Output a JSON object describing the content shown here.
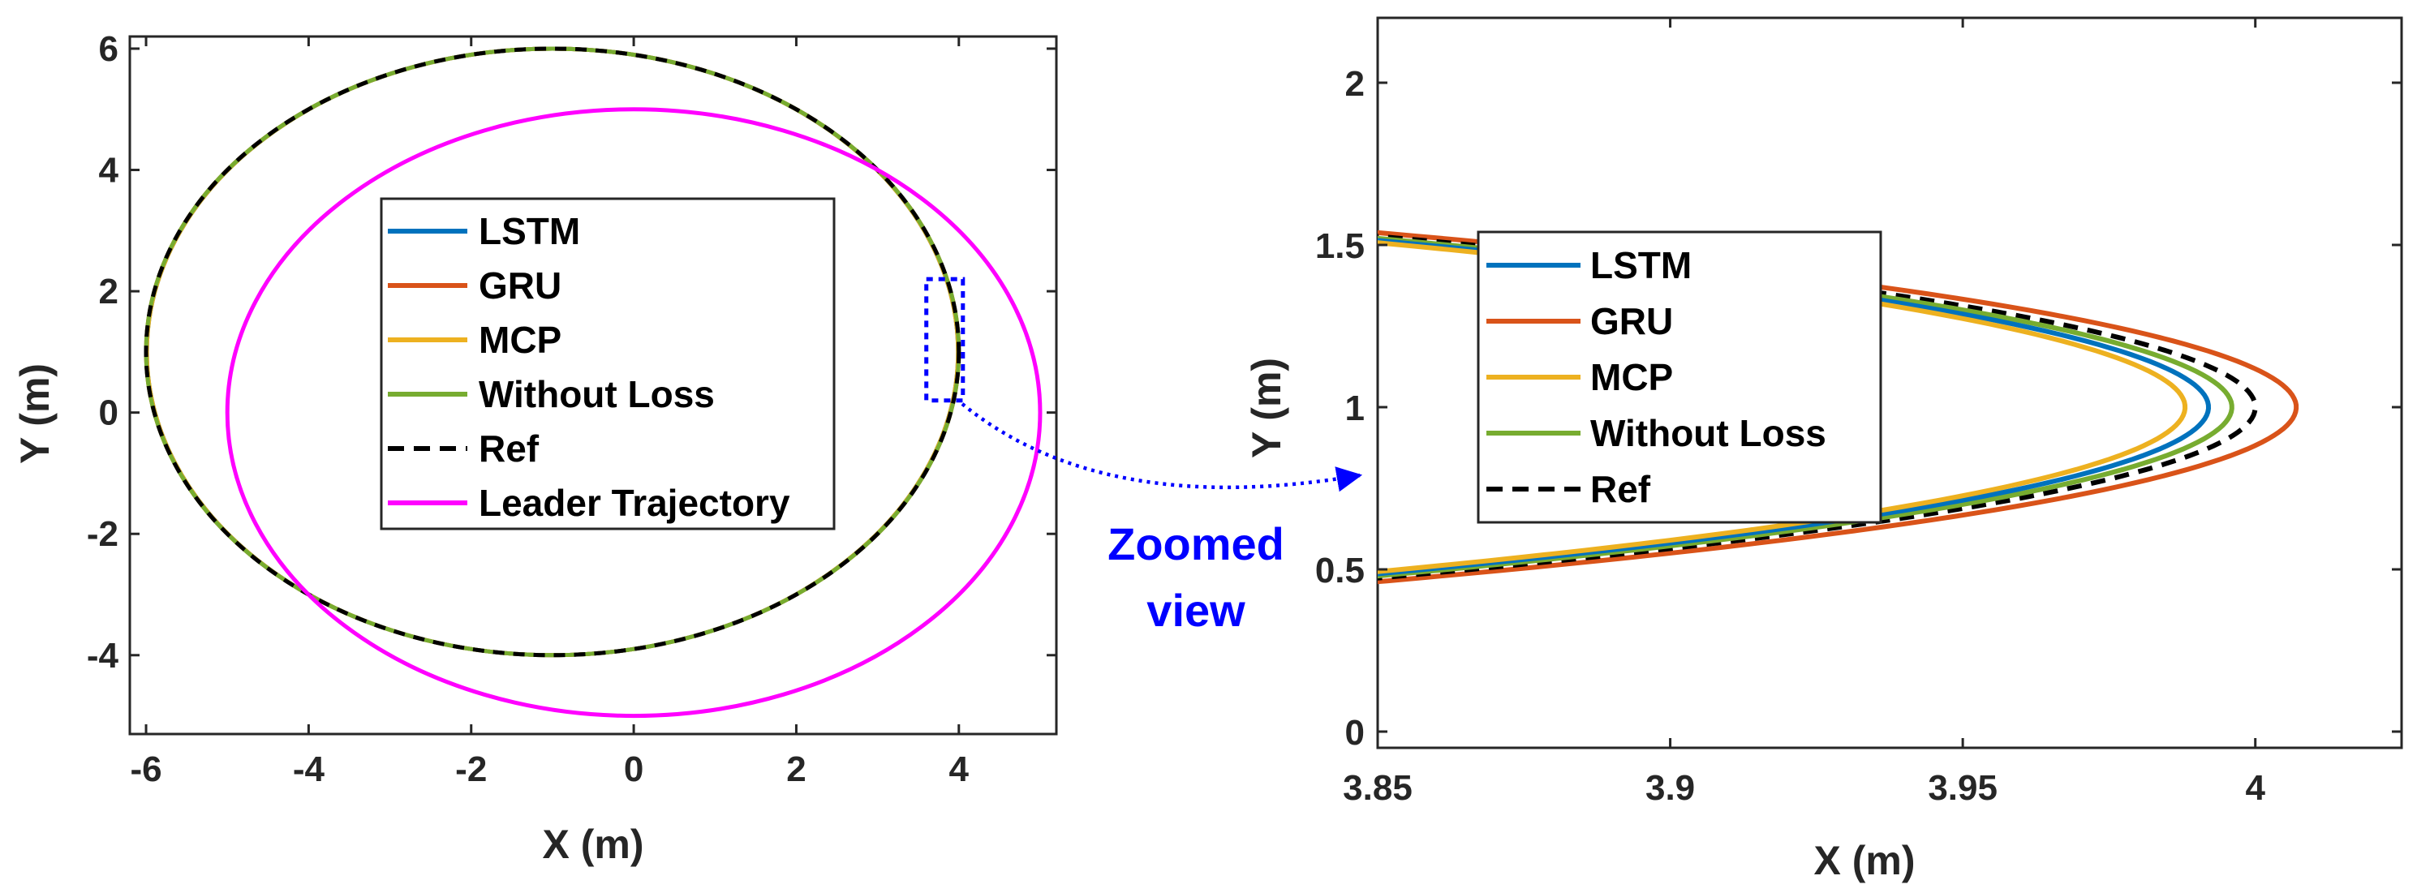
{
  "chart_data": [
    {
      "type": "line",
      "title": "",
      "xlabel": "X (m)",
      "ylabel": "Y (m)",
      "xlim": [
        -6.2,
        5.2
      ],
      "ylim": [
        -5.3,
        6.2
      ],
      "xticks": [
        -6,
        -4,
        -2,
        0,
        2,
        4
      ],
      "xtick_labels": [
        "-6",
        "-4",
        "-2",
        "0",
        "2",
        "4"
      ],
      "yticks": [
        -4,
        -2,
        0,
        2,
        4,
        6
      ],
      "ytick_labels": [
        "-4",
        "-2",
        "0",
        "2",
        "4",
        "6"
      ],
      "grid": false,
      "legend_position": "center",
      "series": [
        {
          "name": "LSTM",
          "color": "#0072BD",
          "style": "solid",
          "shape": "ellipse",
          "center": [
            -1,
            1
          ],
          "radii": [
            4.99,
            5
          ]
        },
        {
          "name": "GRU",
          "color": "#D95319",
          "style": "solid",
          "shape": "ellipse",
          "center": [
            -1,
            1
          ],
          "radii": [
            5.0,
            5
          ]
        },
        {
          "name": "MCP",
          "color": "#EDB120",
          "style": "solid",
          "shape": "ellipse",
          "center": [
            -1,
            1
          ],
          "radii": [
            4.99,
            5
          ]
        },
        {
          "name": "Without Loss",
          "color": "#77AC30",
          "style": "solid",
          "shape": "ellipse",
          "center": [
            -1,
            1
          ],
          "radii": [
            5.0,
            5
          ]
        },
        {
          "name": "Ref",
          "color": "#000000",
          "style": "dashed",
          "shape": "ellipse",
          "center": [
            -1,
            1
          ],
          "radii": [
            5,
            5
          ]
        },
        {
          "name": "Leader Trajectory",
          "color": "#FF00FF",
          "style": "solid",
          "shape": "ellipse",
          "center": [
            0,
            0
          ],
          "radii": [
            5,
            5
          ]
        }
      ],
      "zoom_box": {
        "x": [
          3.6,
          4.05
        ],
        "y": [
          0.2,
          2.2
        ]
      }
    },
    {
      "type": "line",
      "title": "",
      "xlabel": "X (m)",
      "ylabel": "Y (m)",
      "xlim": [
        3.85,
        4.025
      ],
      "ylim": [
        -0.05,
        2.2
      ],
      "xticks": [
        3.85,
        3.9,
        3.95,
        4
      ],
      "xtick_labels": [
        "3.85",
        "3.9",
        "3.95",
        "4"
      ],
      "yticks": [
        0,
        0.5,
        1,
        1.5,
        2
      ],
      "ytick_labels": [
        "0",
        "0.5",
        "1",
        "1.5",
        "2"
      ],
      "grid": false,
      "legend_position": "center-left",
      "series": [
        {
          "name": "LSTM",
          "color": "#0072BD",
          "style": "solid",
          "apex_x": 3.992,
          "apex_y": 1.0
        },
        {
          "name": "GRU",
          "color": "#D95319",
          "style": "solid",
          "apex_x": 4.007,
          "apex_y": 1.0
        },
        {
          "name": "MCP",
          "color": "#EDB120",
          "style": "solid",
          "apex_x": 3.988,
          "apex_y": 1.0
        },
        {
          "name": "Without Loss",
          "color": "#77AC30",
          "style": "solid",
          "apex_x": 3.996,
          "apex_y": 1.0
        },
        {
          "name": "Ref",
          "color": "#000000",
          "style": "dashed",
          "apex_x": 4.0,
          "apex_y": 1.0
        }
      ]
    }
  ],
  "annotation": {
    "text_line1": "Zoomed",
    "text_line2": "view",
    "color": "#0000FF"
  }
}
